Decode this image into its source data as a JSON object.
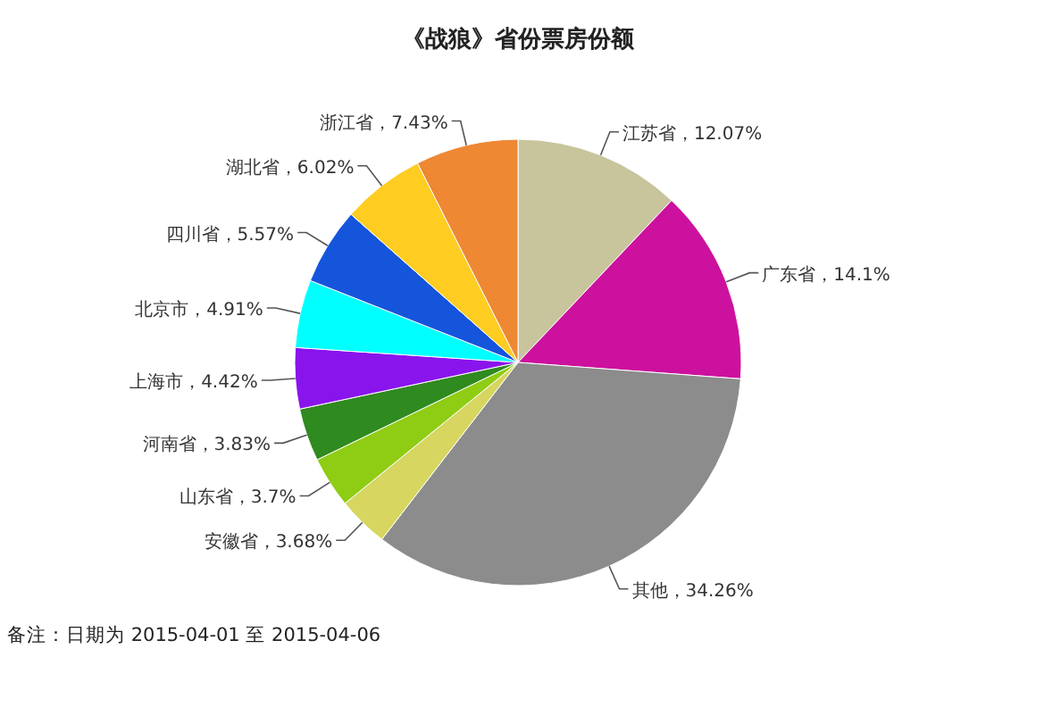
{
  "chart_data": {
    "type": "pie",
    "title": "《战狼》省份票房份额",
    "categories": [
      "江苏省",
      "广东省",
      "其他",
      "安徽省",
      "山东省",
      "河南省",
      "上海市",
      "北京市",
      "四川省",
      "湖北省",
      "浙江省"
    ],
    "values": [
      12.07,
      14.1,
      34.26,
      3.68,
      3.7,
      3.83,
      4.42,
      4.91,
      5.57,
      6.02,
      7.43
    ],
    "value_labels": [
      "，12.07%",
      "，14.1%",
      "，34.26%",
      "，3.68%",
      "，3.7%",
      "，3.83%",
      "，4.42%",
      "，4.91%",
      "，5.57%",
      "，6.02%",
      "，7.43%"
    ],
    "colors": [
      "#c8c49c",
      "#cc119e",
      "#8c8c8c",
      "#d6d660",
      "#8fcc14",
      "#2f8a1f",
      "#8a14ec",
      "#00ffff",
      "#1555dc",
      "#ffcc22",
      "#ee8833"
    ],
    "annotations": [
      "备注：日期为 2015-04-01 至 2015-04-06"
    ]
  }
}
